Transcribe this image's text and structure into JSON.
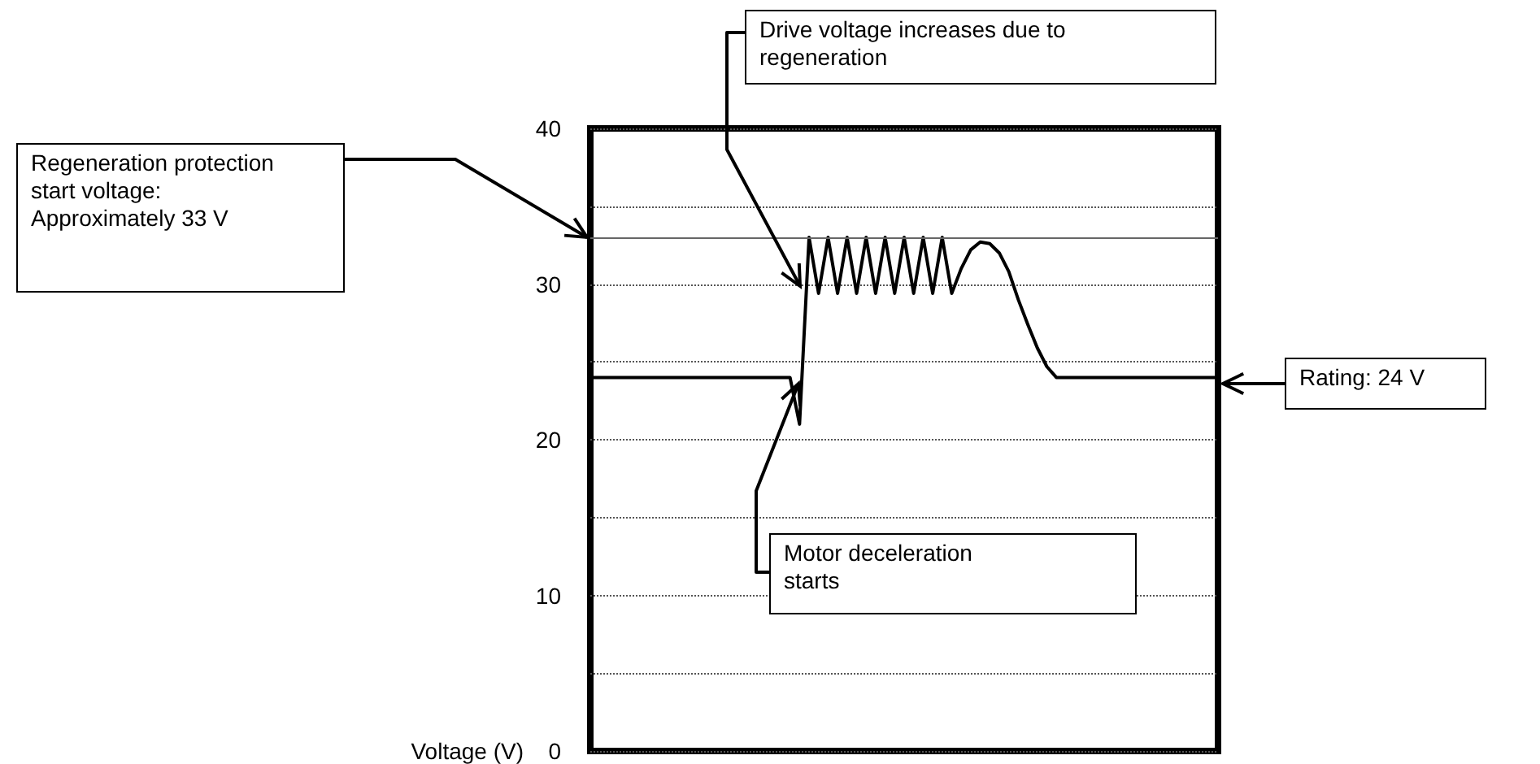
{
  "chart_data": {
    "type": "line",
    "ylabel": "Voltage (V)",
    "categories": [
      null,
      null,
      null,
      null,
      null,
      null,
      null,
      null,
      null,
      null,
      null,
      null,
      null,
      null,
      null,
      null,
      null,
      null,
      null,
      null,
      null,
      null,
      null,
      null,
      null,
      null,
      null,
      null,
      null,
      null,
      null,
      null,
      null,
      null,
      null,
      null,
      null,
      null,
      null,
      null,
      null,
      null,
      null,
      null,
      null,
      null,
      null,
      null,
      null,
      null,
      null,
      null,
      null,
      null,
      null,
      null,
      null,
      null,
      null,
      null,
      null,
      null,
      null,
      null,
      null,
      null,
      null
    ],
    "series": [
      {
        "color": "#000000",
        "values": [
          24,
          24,
          24,
          24,
          24,
          24,
          24,
          24,
          24,
          24,
          24,
          24,
          24,
          24,
          24,
          24,
          24,
          24,
          24,
          24,
          24,
          24,
          21,
          33,
          29.4,
          33,
          29.4,
          33,
          29.4,
          33,
          29.4,
          33,
          29.4,
          33,
          29.4,
          33,
          29.4,
          33,
          29.4,
          31,
          32.2,
          32.7,
          32.6,
          32,
          30.8,
          29,
          27.4,
          25.9,
          24.7,
          24,
          24,
          24,
          24,
          24,
          24,
          24,
          24,
          24,
          24,
          24,
          24,
          24,
          24,
          24,
          24,
          24,
          24
        ]
      }
    ],
    "ylim": [
      0,
      40
    ],
    "yticks": [
      0,
      {
        "value": 5,
        "label": null
      },
      10,
      {
        "value": 15,
        "label": null
      },
      20,
      {
        "value": 25,
        "label": null
      },
      30,
      {
        "value": 35,
        "label": null
      },
      40
    ],
    "grid": "y",
    "marker": "none",
    "line_style": "solid",
    "ref_lines": [
      {
        "axis": "y",
        "value": 33,
        "color": "#666666"
      }
    ],
    "annotations": [
      "Drive voltage increases due to regeneration",
      "Regeneration protection start voltage: Approximately 33 V",
      "Rating: 24 V",
      "Motor deceleration starts"
    ]
  }
}
